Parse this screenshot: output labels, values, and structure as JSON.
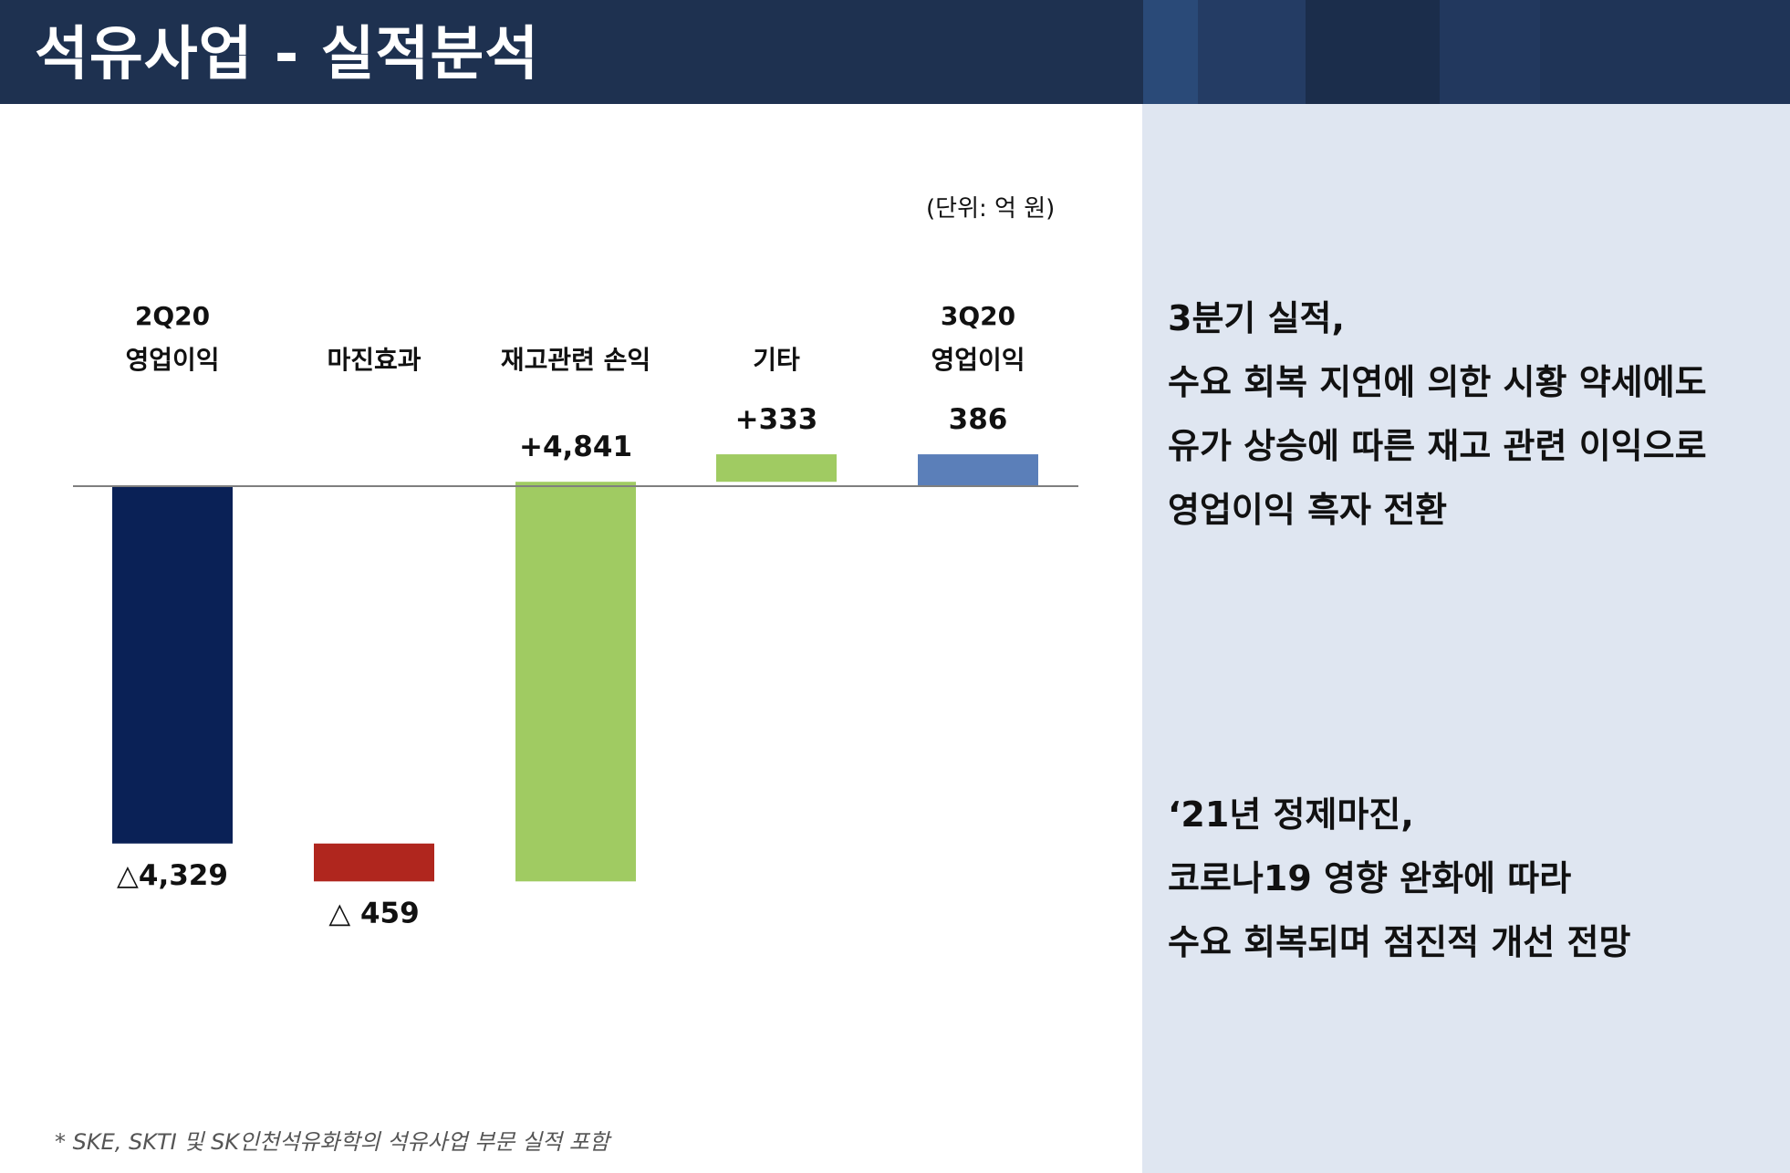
{
  "header": {
    "title": "석유사업 - 실적분석"
  },
  "unit": "(단위: 억 원)",
  "chart_data": {
    "type": "bar",
    "subtype": "waterfall",
    "categories": [
      [
        "2Q20",
        "영업이익"
      ],
      [
        "마진효과"
      ],
      [
        "재고관련 손익"
      ],
      [
        "기타"
      ],
      [
        "3Q20",
        "영업이익"
      ]
    ],
    "values": [
      -4329,
      -459,
      4841,
      333,
      386
    ],
    "value_labels": [
      "△4,329",
      "△ 459",
      "+4,841",
      "+333",
      "386"
    ],
    "bar_kind": [
      "total",
      "delta",
      "delta",
      "delta",
      "total"
    ],
    "colors": [
      "#0a2156",
      "#b0261e",
      "#a0cb62",
      "#a0cb62",
      "#5b7fb9"
    ]
  },
  "commentary": [
    [
      "3분기 실적,",
      "수요 회복 지연에 의한 시황 약세에도",
      "유가 상승에 따른 재고 관련 이익으로",
      "영업이익 흑자 전환"
    ],
    [
      "‘21년 정제마진,",
      "코로나19 영향 완화에 따라",
      "수요 회복되며 점진적 개선 전망"
    ]
  ],
  "footnote": "* SKE, SKTI 및 SK인천석유화학의 석유사업 부문 실적 포함"
}
